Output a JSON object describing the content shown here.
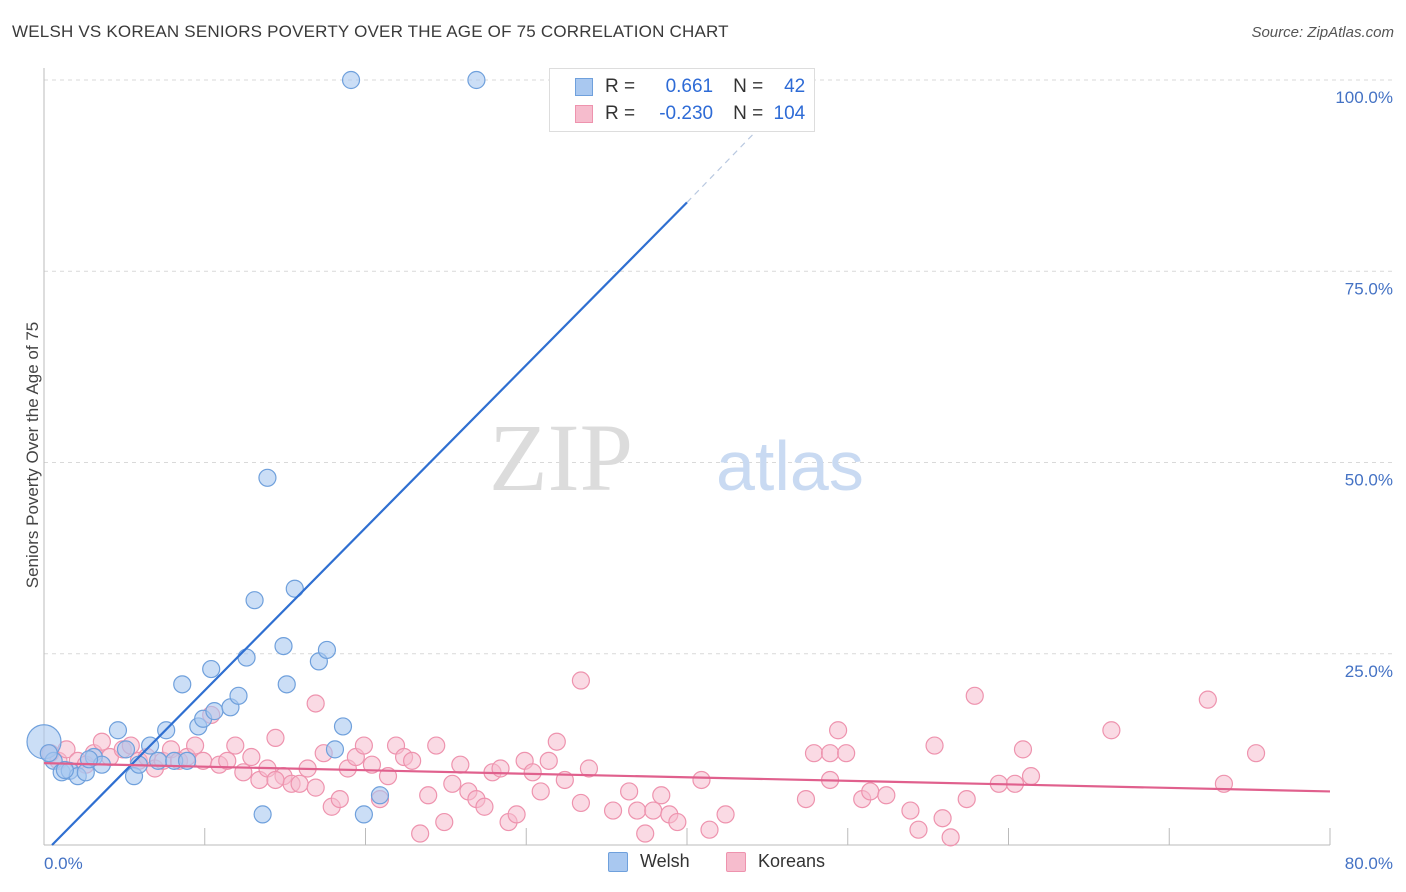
{
  "header": {
    "title": "WELSH VS KOREAN SENIORS POVERTY OVER THE AGE OF 75 CORRELATION CHART",
    "source": "Source: ZipAtlas.com"
  },
  "watermark": {
    "zip": "ZIP",
    "atlas": "atlas"
  },
  "stats": {
    "welsh": {
      "r_label": "R =",
      "r_value": "0.661",
      "n_label": "N =",
      "n_value": "42"
    },
    "koreans": {
      "r_label": "R =",
      "r_value": "-0.230",
      "n_label": "N =",
      "n_value": "104"
    }
  },
  "legend": {
    "welsh": "Welsh",
    "koreans": "Koreans"
  },
  "colors": {
    "welsh_fill": "#a9c8f0",
    "welsh_stroke": "#6fa0dc",
    "welsh_line": "#2f6fd1",
    "koreans_fill": "#f6bccd",
    "koreans_stroke": "#ee93ae",
    "koreans_line": "#e0608d",
    "grid": "#d9d9d9",
    "tick_label": "#4472c4"
  },
  "chart_data": {
    "type": "scatter",
    "title": "WELSH VS KOREAN SENIORS POVERTY OVER THE AGE OF 75 CORRELATION CHART",
    "xlabel": "",
    "ylabel": "Seniors Poverty Over the Age of 75",
    "xlim": [
      0,
      80
    ],
    "ylim": [
      0,
      100
    ],
    "x_tick_labels": [
      "0.0%",
      "80.0%"
    ],
    "y_ticks": [
      25,
      50,
      75,
      100
    ],
    "y_tick_labels": [
      "25.0%",
      "50.0%",
      "75.0%",
      "100.0%"
    ],
    "grid": true,
    "series": [
      {
        "name": "Welsh",
        "points": [
          [
            0.0,
            13.5
          ],
          [
            0.6,
            11.0
          ],
          [
            1.1,
            9.5
          ],
          [
            1.6,
            9.7
          ],
          [
            2.1,
            9.0
          ],
          [
            2.6,
            9.5
          ],
          [
            3.1,
            11.5
          ],
          [
            3.6,
            10.5
          ],
          [
            4.6,
            15.0
          ],
          [
            5.1,
            12.5
          ],
          [
            5.6,
            9.0
          ],
          [
            5.9,
            10.5
          ],
          [
            6.6,
            13.0
          ],
          [
            7.1,
            11.0
          ],
          [
            7.6,
            15.0
          ],
          [
            8.1,
            11.0
          ],
          [
            8.6,
            21.0
          ],
          [
            8.9,
            11.0
          ],
          [
            9.6,
            15.5
          ],
          [
            9.9,
            16.5
          ],
          [
            10.4,
            23.0
          ],
          [
            10.6,
            17.5
          ],
          [
            11.6,
            18.0
          ],
          [
            12.1,
            19.5
          ],
          [
            12.6,
            24.5
          ],
          [
            13.1,
            32.0
          ],
          [
            13.6,
            4.0
          ],
          [
            13.9,
            48.0
          ],
          [
            14.9,
            26.0
          ],
          [
            15.1,
            21.0
          ],
          [
            15.6,
            33.5
          ],
          [
            17.1,
            24.0
          ],
          [
            17.6,
            25.5
          ],
          [
            18.1,
            12.5
          ],
          [
            18.6,
            15.5
          ],
          [
            19.1,
            100.0
          ],
          [
            19.9,
            4.0
          ],
          [
            20.9,
            6.5
          ],
          [
            26.9,
            100.0
          ],
          [
            0.3,
            12.0
          ],
          [
            1.3,
            9.8
          ],
          [
            2.8,
            11.2
          ]
        ],
        "fit_line": {
          "x_start": 0.5,
          "y_start": 0.0,
          "x_end": 40.0,
          "y_end": 84.0,
          "dashed_to_x": 46.0,
          "dashed_to_y": 97.0
        }
      },
      {
        "name": "Koreans",
        "points": [
          [
            0.4,
            12.0
          ],
          [
            0.9,
            11.0
          ],
          [
            1.4,
            12.5
          ],
          [
            2.1,
            11.0
          ],
          [
            2.6,
            10.5
          ],
          [
            3.1,
            12.0
          ],
          [
            3.6,
            13.5
          ],
          [
            4.1,
            11.5
          ],
          [
            4.9,
            12.5
          ],
          [
            5.4,
            13.0
          ],
          [
            5.9,
            11.0
          ],
          [
            6.4,
            11.5
          ],
          [
            6.9,
            10.0
          ],
          [
            7.4,
            11.0
          ],
          [
            7.9,
            12.5
          ],
          [
            8.4,
            11.0
          ],
          [
            8.9,
            11.5
          ],
          [
            9.4,
            13.0
          ],
          [
            9.9,
            11.0
          ],
          [
            10.4,
            17.0
          ],
          [
            10.9,
            10.5
          ],
          [
            11.4,
            11.0
          ],
          [
            11.9,
            13.0
          ],
          [
            12.4,
            9.5
          ],
          [
            12.9,
            11.5
          ],
          [
            13.4,
            8.5
          ],
          [
            13.9,
            10.0
          ],
          [
            14.4,
            14.0
          ],
          [
            14.9,
            9.0
          ],
          [
            15.4,
            8.0
          ],
          [
            15.9,
            8.0
          ],
          [
            16.4,
            10.0
          ],
          [
            16.9,
            18.5
          ],
          [
            17.4,
            12.0
          ],
          [
            17.9,
            5.0
          ],
          [
            18.4,
            6.0
          ],
          [
            18.9,
            10.0
          ],
          [
            19.4,
            11.5
          ],
          [
            19.9,
            13.0
          ],
          [
            20.4,
            10.5
          ],
          [
            20.9,
            6.0
          ],
          [
            21.4,
            9.0
          ],
          [
            21.9,
            13.0
          ],
          [
            22.4,
            11.5
          ],
          [
            22.9,
            11.0
          ],
          [
            23.4,
            1.5
          ],
          [
            23.9,
            6.5
          ],
          [
            24.4,
            13.0
          ],
          [
            24.9,
            3.0
          ],
          [
            25.4,
            8.0
          ],
          [
            25.9,
            10.5
          ],
          [
            26.4,
            7.0
          ],
          [
            26.9,
            6.0
          ],
          [
            27.4,
            5.0
          ],
          [
            27.9,
            9.5
          ],
          [
            28.4,
            10.0
          ],
          [
            28.9,
            3.0
          ],
          [
            29.4,
            4.0
          ],
          [
            29.9,
            11.0
          ],
          [
            30.4,
            9.5
          ],
          [
            30.9,
            7.0
          ],
          [
            31.4,
            11.0
          ],
          [
            31.9,
            13.5
          ],
          [
            32.4,
            8.5
          ],
          [
            33.4,
            21.5
          ],
          [
            33.9,
            10.0
          ],
          [
            35.4,
            4.5
          ],
          [
            36.4,
            7.0
          ],
          [
            36.9,
            4.5
          ],
          [
            37.4,
            1.5
          ],
          [
            37.9,
            4.5
          ],
          [
            38.4,
            6.5
          ],
          [
            38.9,
            4.0
          ],
          [
            39.4,
            3.0
          ],
          [
            40.9,
            8.5
          ],
          [
            41.4,
            2.0
          ],
          [
            42.4,
            4.0
          ],
          [
            47.4,
            6.0
          ],
          [
            47.9,
            12.0
          ],
          [
            48.9,
            12.0
          ],
          [
            48.9,
            8.5
          ],
          [
            49.4,
            15.0
          ],
          [
            49.9,
            12.0
          ],
          [
            50.9,
            6.0
          ],
          [
            51.4,
            7.0
          ],
          [
            52.4,
            6.5
          ],
          [
            53.9,
            4.5
          ],
          [
            54.4,
            2.0
          ],
          [
            55.4,
            13.0
          ],
          [
            56.4,
            1.0
          ],
          [
            57.4,
            6.0
          ],
          [
            57.9,
            19.5
          ],
          [
            59.4,
            8.0
          ],
          [
            60.4,
            8.0
          ],
          [
            60.9,
            12.5
          ],
          [
            61.4,
            9.0
          ],
          [
            66.4,
            15.0
          ],
          [
            72.4,
            19.0
          ],
          [
            73.4,
            8.0
          ],
          [
            75.4,
            12.0
          ],
          [
            14.4,
            8.5
          ],
          [
            16.9,
            7.5
          ],
          [
            33.4,
            5.5
          ],
          [
            55.9,
            3.5
          ]
        ],
        "fit_line": {
          "x_start": 0.0,
          "y_start": 10.7,
          "x_end": 80.0,
          "y_end": 7.0
        }
      }
    ]
  }
}
